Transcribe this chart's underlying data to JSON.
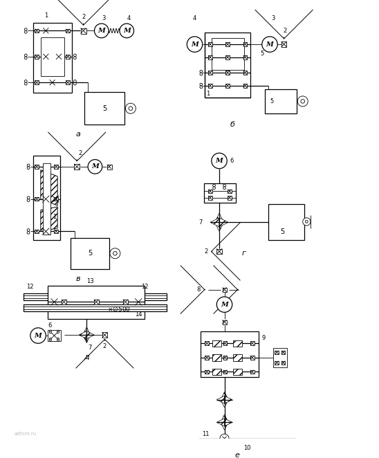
{
  "bg_color": "#ffffff",
  "fig_width": 5.48,
  "fig_height": 6.62,
  "dpi": 100,
  "labels": {
    "a": "а",
    "b": "б",
    "v": "в",
    "g": "г",
    "d": "д",
    "e": "е"
  }
}
